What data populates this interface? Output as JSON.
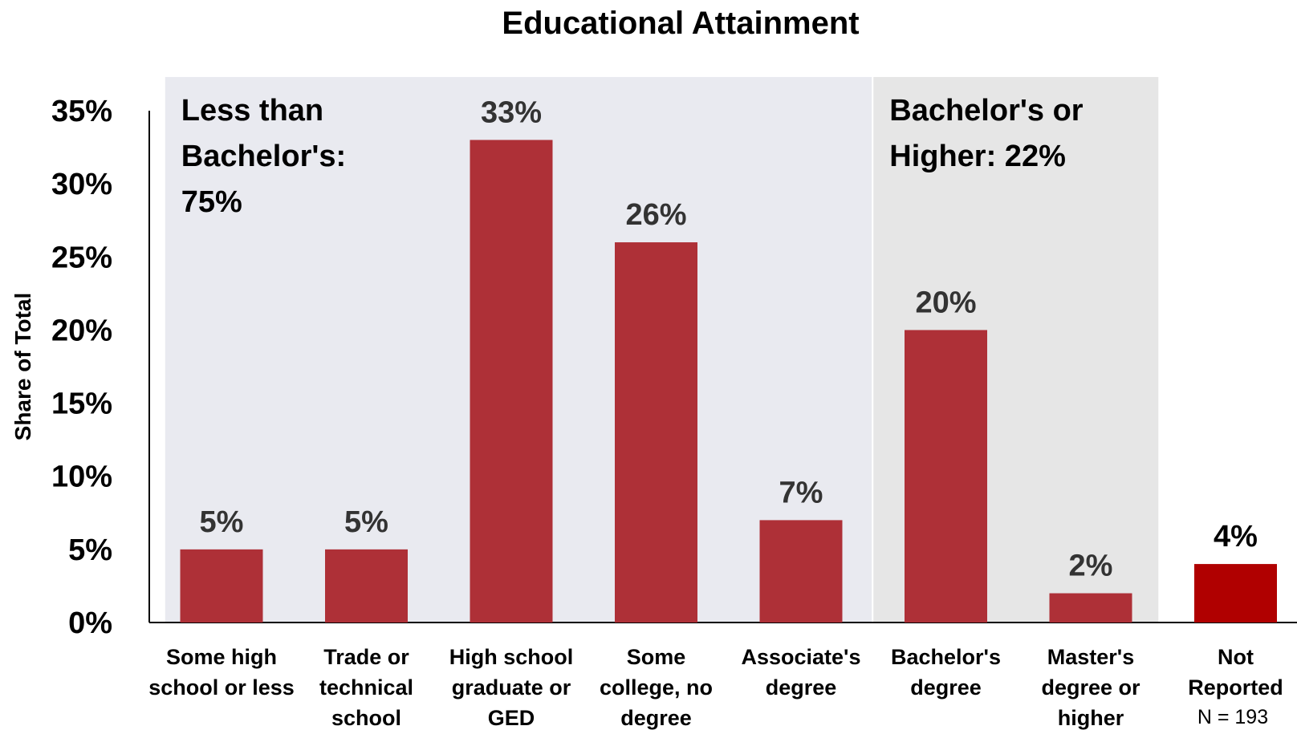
{
  "chart_data": {
    "type": "bar",
    "title": "Educational Attainment",
    "ylabel": "Share of Total",
    "ylim": [
      0,
      35
    ],
    "yticks": [
      "0%",
      "5%",
      "10%",
      "15%",
      "20%",
      "25%",
      "30%",
      "35%"
    ],
    "categories": [
      [
        "Some high",
        "school or less"
      ],
      [
        "Trade or",
        "technical",
        "school"
      ],
      [
        "High school",
        "graduate or",
        "GED"
      ],
      [
        "Some",
        "college, no",
        "degree"
      ],
      [
        "Associate's",
        "degree"
      ],
      [
        "Bachelor's",
        "degree"
      ],
      [
        "Master's",
        "degree or",
        "higher"
      ],
      [
        "Not",
        "Reported"
      ]
    ],
    "values": [
      5,
      5,
      33,
      26,
      7,
      20,
      2,
      4
    ],
    "data_labels": [
      "5%",
      "5%",
      "33%",
      "26%",
      "7%",
      "20%",
      "2%",
      "4%"
    ],
    "groups": [
      {
        "label_lines": [
          "Less than",
          "Bachelor's:",
          "75%"
        ],
        "first": 0,
        "last": 4
      },
      {
        "label_lines": [
          "Bachelor's or",
          "Higher: 22%"
        ],
        "first": 5,
        "last": 6
      }
    ],
    "note": "N = 193",
    "colors": {
      "bar": "#ae3037",
      "bar_highlight": "#b00000",
      "group_a_bg": "#e9eaf0",
      "group_b_bg": "#e6e6e6",
      "label": "#333333",
      "label_highlight": "#000000"
    }
  }
}
